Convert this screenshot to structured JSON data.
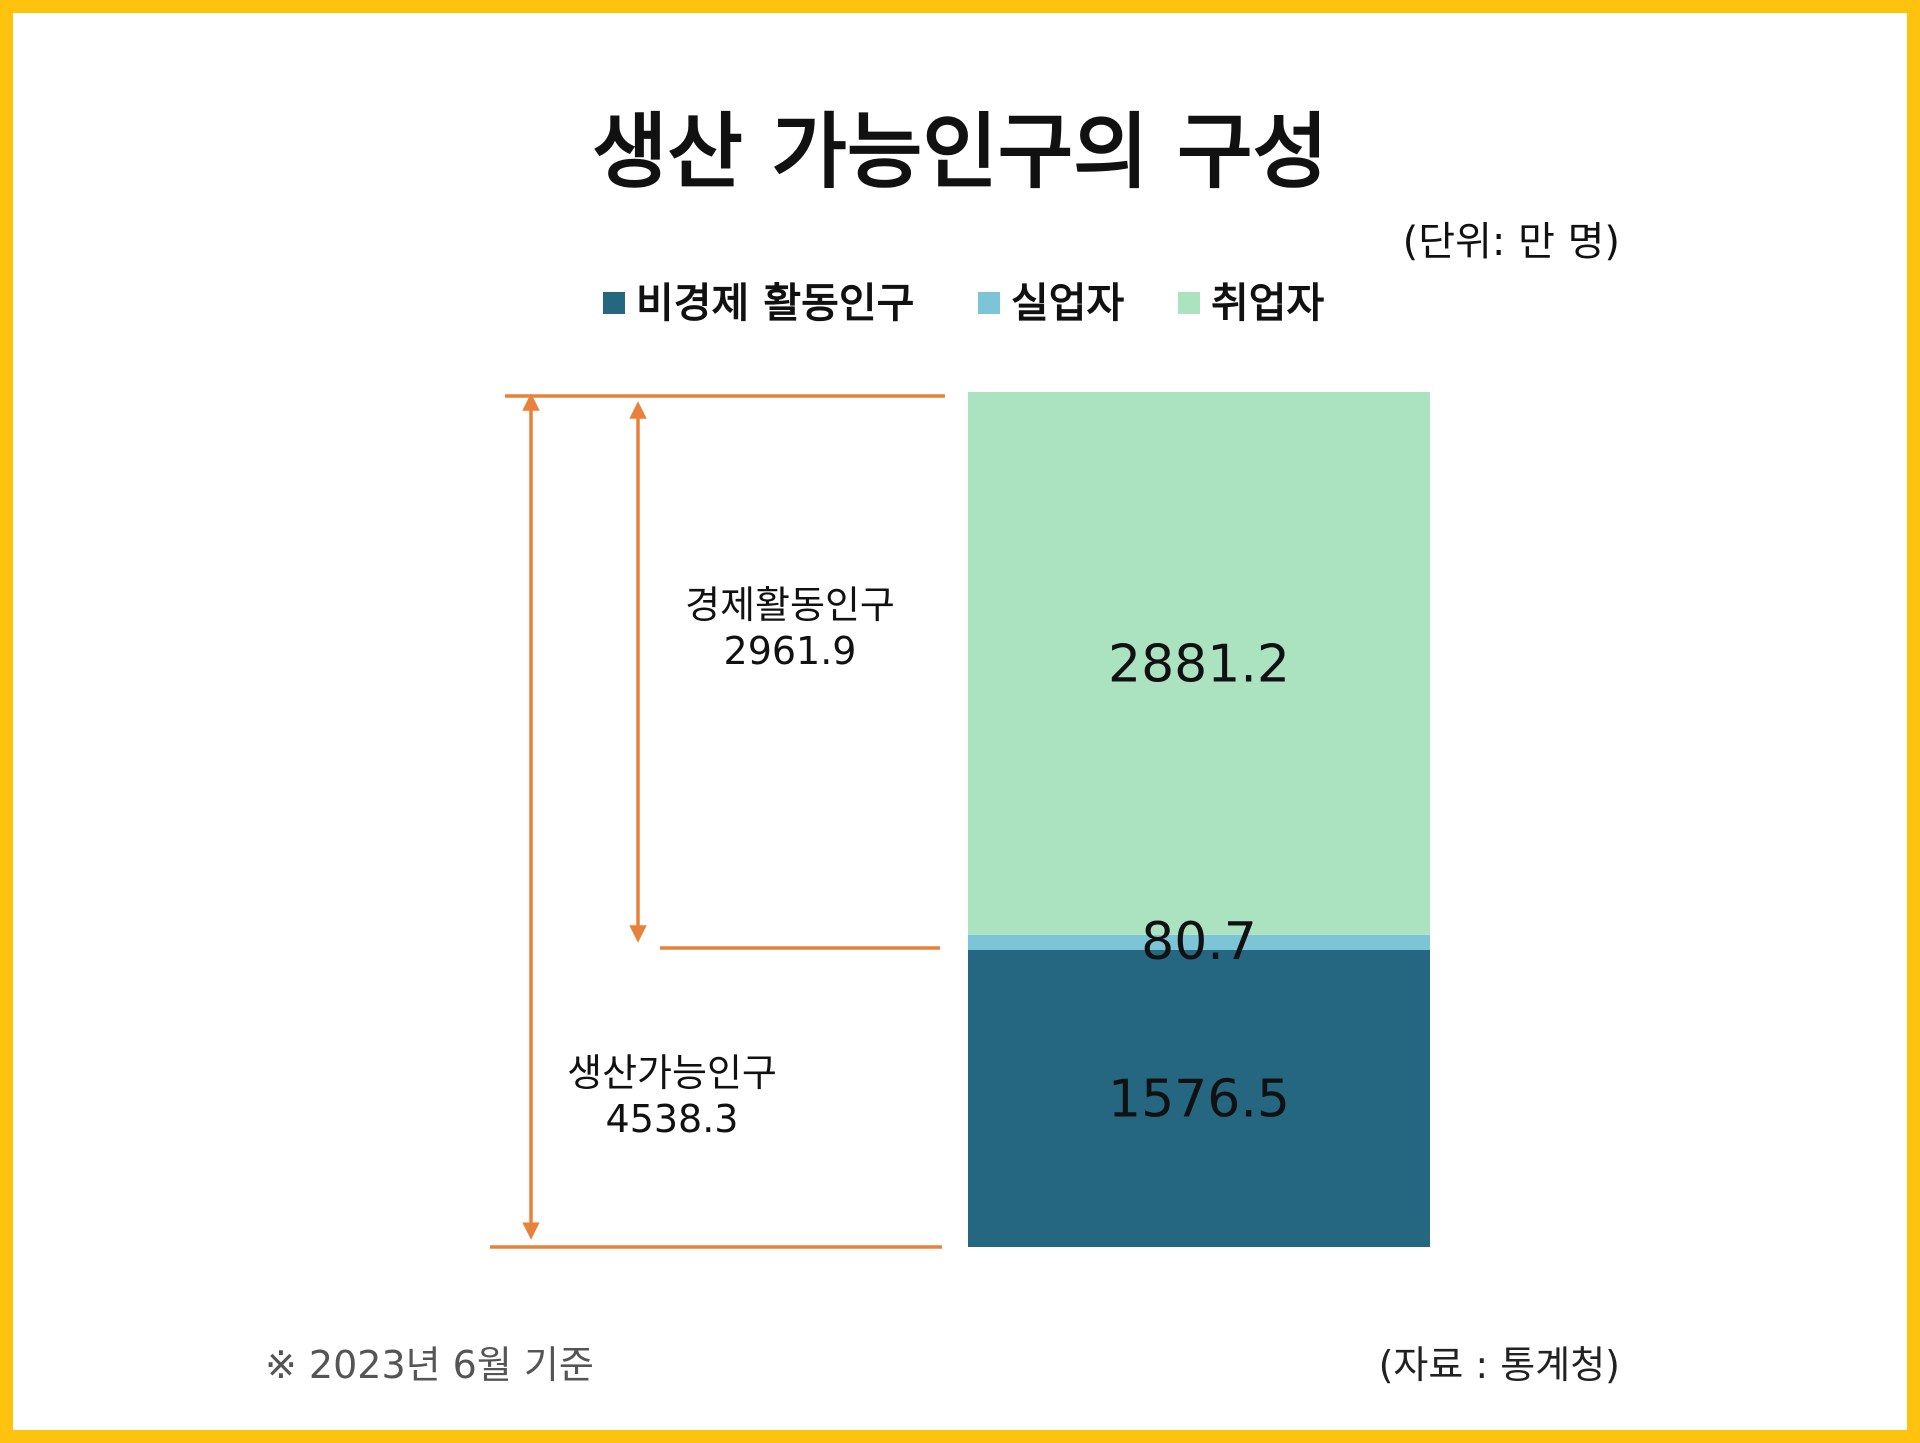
{
  "title": "생산 가능인구의 구성",
  "unit": "(단위: 만 명)",
  "legend": [
    {
      "label": "비경제 활동인구",
      "color": "#256680"
    },
    {
      "label": "실업자",
      "color": "#7CC4D6"
    },
    {
      "label": "취업자",
      "color": "#ABE3C1"
    }
  ],
  "chart_data": {
    "type": "bar",
    "stacked": true,
    "categories": [
      ""
    ],
    "series": [
      {
        "name": "비경제 활동인구",
        "values": [
          1576.5
        ],
        "color": "#256680",
        "label": "1576.5"
      },
      {
        "name": "실업자",
        "values": [
          80.7
        ],
        "color": "#7CC4D6",
        "label": "80.7"
      },
      {
        "name": "취업자",
        "values": [
          2881.2
        ],
        "color": "#ABE3C1",
        "label": "2881.2"
      }
    ],
    "legend_position": "top",
    "grid": false,
    "brackets": [
      {
        "label": "경제활동인구",
        "value": "2961.9",
        "from_series": 1,
        "to_series": 2
      },
      {
        "label": "생산가능인구",
        "value": "4538.3",
        "from_series": 0,
        "to_series": 2
      }
    ],
    "bracket_color": "#E8823A"
  },
  "footer": {
    "note": "※ 2023년 6월 기준",
    "source": "(자료 : 통계청)"
  }
}
